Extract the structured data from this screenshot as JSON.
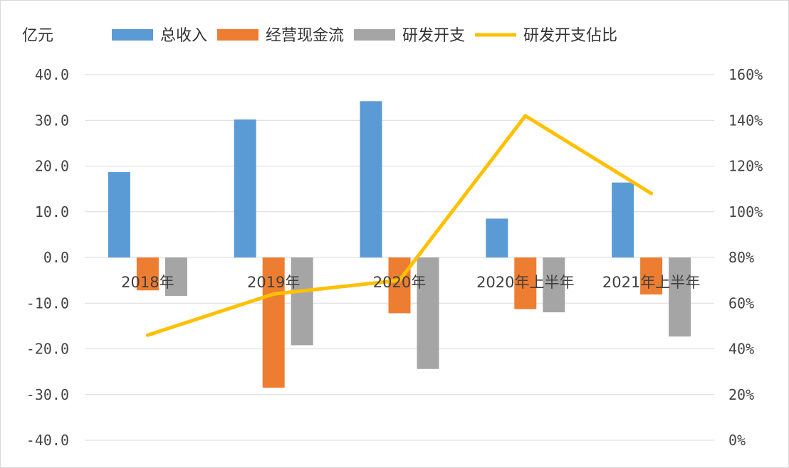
{
  "chart_data": {
    "type": "bar",
    "unit_label": "亿元",
    "categories": [
      "2018年",
      "2019年",
      "2020年",
      "2020年上半年",
      "2021年上半年"
    ],
    "series": [
      {
        "name": "总收入",
        "type": "bar",
        "axis": "left",
        "color": "#5b9bd5",
        "values": [
          18.7,
          30.2,
          34.2,
          8.5,
          16.4
        ]
      },
      {
        "name": "经营现金流",
        "type": "bar",
        "axis": "left",
        "color": "#ed7d31",
        "values": [
          -7.2,
          -28.5,
          -12.2,
          -11.3,
          -8.1
        ]
      },
      {
        "name": "研发开支",
        "type": "bar",
        "axis": "left",
        "color": "#a5a5a5",
        "values": [
          -8.4,
          -19.2,
          -24.4,
          -12.0,
          -17.3
        ]
      },
      {
        "name": "研发开支佔比",
        "type": "line",
        "axis": "right",
        "color": "#ffc000",
        "values": [
          0.46,
          0.64,
          0.7,
          1.42,
          1.08
        ]
      }
    ],
    "y_left": {
      "lim": [
        -40,
        40
      ],
      "ticks": [
        40,
        30,
        20,
        10,
        0,
        -10,
        -20,
        -30,
        -40
      ],
      "tick_labels": [
        "40.0",
        "30.0",
        "20.0",
        "10.0",
        "0.0",
        "-10.0",
        "-20.0",
        "-30.0",
        "-40.0"
      ]
    },
    "y_right": {
      "lim": [
        0,
        1.6
      ],
      "ticks": [
        1.6,
        1.4,
        1.2,
        1.0,
        0.8,
        0.6,
        0.4,
        0.2,
        0.0
      ],
      "tick_labels": [
        "160%",
        "140%",
        "120%",
        "100%",
        "80%",
        "60%",
        "40%",
        "20%",
        "0%"
      ]
    },
    "grid": true,
    "legend_position": "top"
  }
}
